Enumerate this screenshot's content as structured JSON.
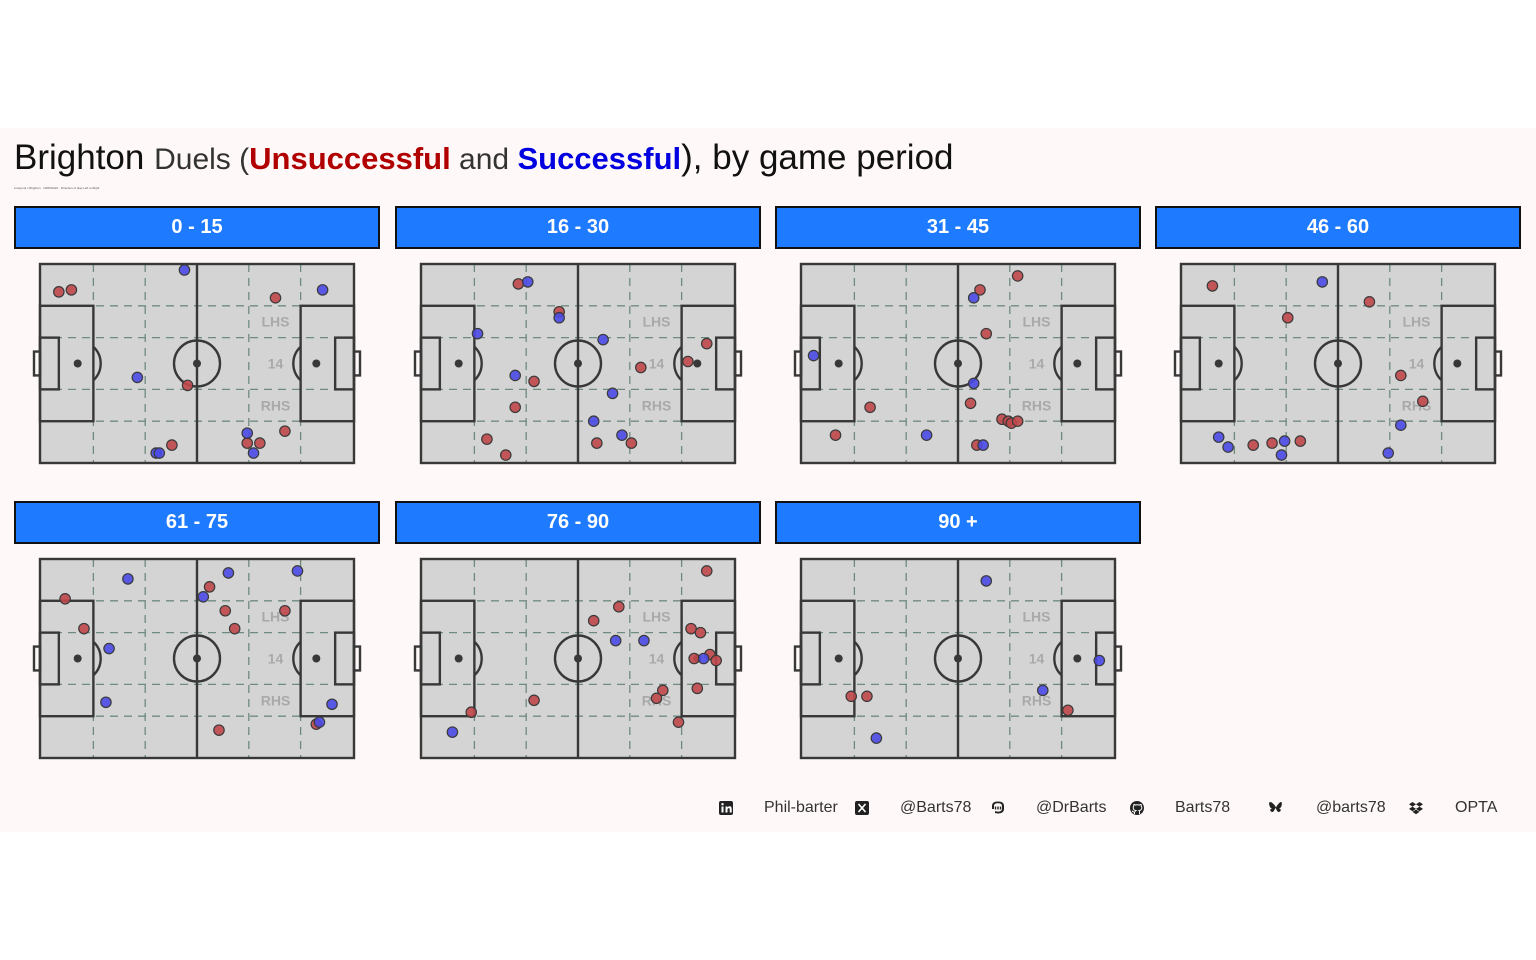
{
  "title": {
    "team": "Brighton",
    "metric": "Duels",
    "open": " (",
    "unsuccessful": "Unsuccessful",
    "and": " and ",
    "successful": "Successful",
    "close": "), by game period"
  },
  "subtitle": "Liverpool v Brighton · 19/05/2024 · Direction of play Left to Right",
  "pitch_labels": {
    "lhs": "LHS",
    "middle": "14",
    "rhs": "RHS"
  },
  "colors": {
    "unsuccessful": "#c0474a",
    "successful": "#4a4ae6",
    "strip": "#1e7bff",
    "pitch": "#d4d4d4",
    "background": "#fff8f8"
  },
  "chart_data": {
    "type": "scatter",
    "x_range": [
      0,
      100
    ],
    "y_range": [
      0,
      100
    ],
    "x_direction": "left to right",
    "facets": [
      {
        "label": "0 - 15",
        "unsuccessful": [
          [
            6,
            86
          ],
          [
            10,
            87
          ],
          [
            75,
            83
          ],
          [
            47,
            39
          ],
          [
            42,
            9
          ],
          [
            66,
            10
          ],
          [
            70,
            10
          ],
          [
            78,
            16
          ]
        ],
        "successful": [
          [
            46,
            97
          ],
          [
            90,
            87
          ],
          [
            31,
            43
          ],
          [
            37,
            5
          ],
          [
            38,
            5
          ],
          [
            66,
            15
          ],
          [
            68,
            5
          ]
        ]
      },
      {
        "label": "16 - 30",
        "unsuccessful": [
          [
            31,
            90
          ],
          [
            44,
            76
          ],
          [
            36,
            41
          ],
          [
            30,
            28
          ],
          [
            21,
            12
          ],
          [
            27,
            4
          ],
          [
            56,
            10
          ],
          [
            67,
            10
          ],
          [
            70,
            48
          ],
          [
            85,
            51
          ],
          [
            91,
            60
          ]
        ],
        "successful": [
          [
            34,
            91
          ],
          [
            44,
            73
          ],
          [
            18,
            65
          ],
          [
            30,
            44
          ],
          [
            58,
            62
          ],
          [
            61,
            35
          ],
          [
            55,
            21
          ],
          [
            64,
            14
          ]
        ]
      },
      {
        "label": "31 - 45",
        "unsuccessful": [
          [
            57,
            87
          ],
          [
            69,
            94
          ],
          [
            59,
            65
          ],
          [
            22,
            28
          ],
          [
            54,
            30
          ],
          [
            64,
            22
          ],
          [
            66,
            21
          ],
          [
            67,
            20
          ],
          [
            69,
            21
          ],
          [
            56,
            9
          ],
          [
            11,
            14
          ]
        ],
        "successful": [
          [
            55,
            83
          ],
          [
            55,
            40
          ],
          [
            4,
            54
          ],
          [
            40,
            14
          ],
          [
            58,
            9
          ]
        ]
      },
      {
        "label": "46 - 60",
        "unsuccessful": [
          [
            10,
            89
          ],
          [
            60,
            81
          ],
          [
            34,
            73
          ],
          [
            70,
            44
          ],
          [
            77,
            31
          ],
          [
            23,
            9
          ],
          [
            29,
            10
          ],
          [
            38,
            11
          ]
        ],
        "successful": [
          [
            45,
            91
          ],
          [
            70,
            19
          ],
          [
            66,
            5
          ],
          [
            12,
            13
          ],
          [
            15,
            8
          ],
          [
            33,
            11
          ],
          [
            32,
            4
          ]
        ]
      },
      {
        "label": "61 - 75",
        "unsuccessful": [
          [
            8,
            80
          ],
          [
            14,
            65
          ],
          [
            54,
            86
          ],
          [
            59,
            74
          ],
          [
            62,
            65
          ],
          [
            78,
            74
          ],
          [
            57,
            14
          ],
          [
            88,
            17
          ]
        ],
        "successful": [
          [
            28,
            90
          ],
          [
            60,
            93
          ],
          [
            82,
            94
          ],
          [
            52,
            81
          ],
          [
            22,
            55
          ],
          [
            21,
            28
          ],
          [
            93,
            27
          ],
          [
            89,
            18
          ]
        ]
      },
      {
        "label": "76 - 90",
        "unsuccessful": [
          [
            91,
            94
          ],
          [
            63,
            76
          ],
          [
            55,
            69
          ],
          [
            89,
            63
          ],
          [
            86,
            65
          ],
          [
            87,
            50
          ],
          [
            92,
            52
          ],
          [
            94,
            49
          ],
          [
            77,
            34
          ],
          [
            75,
            30
          ],
          [
            88,
            35
          ],
          [
            82,
            18
          ],
          [
            16,
            23
          ],
          [
            36,
            29
          ]
        ],
        "successful": [
          [
            62,
            59
          ],
          [
            71,
            59
          ],
          [
            90,
            50
          ],
          [
            10,
            13
          ]
        ]
      },
      {
        "label": "90 +",
        "unsuccessful": [
          [
            16,
            31
          ],
          [
            21,
            31
          ],
          [
            85,
            24
          ]
        ],
        "successful": [
          [
            59,
            89
          ],
          [
            95,
            49
          ],
          [
            77,
            34
          ],
          [
            24,
            10
          ]
        ]
      }
    ]
  },
  "footer": [
    {
      "icon": "linkedin-icon",
      "text": "Phil-barter"
    },
    {
      "icon": "x-icon",
      "text": "@Barts78"
    },
    {
      "icon": "mastodon-icon",
      "text": "@DrBarts"
    },
    {
      "icon": "github-icon",
      "text": "Barts78"
    },
    {
      "icon": "bluesky-icon",
      "text": "@barts78"
    },
    {
      "icon": "dropbox-icon",
      "text": "OPTA"
    }
  ]
}
